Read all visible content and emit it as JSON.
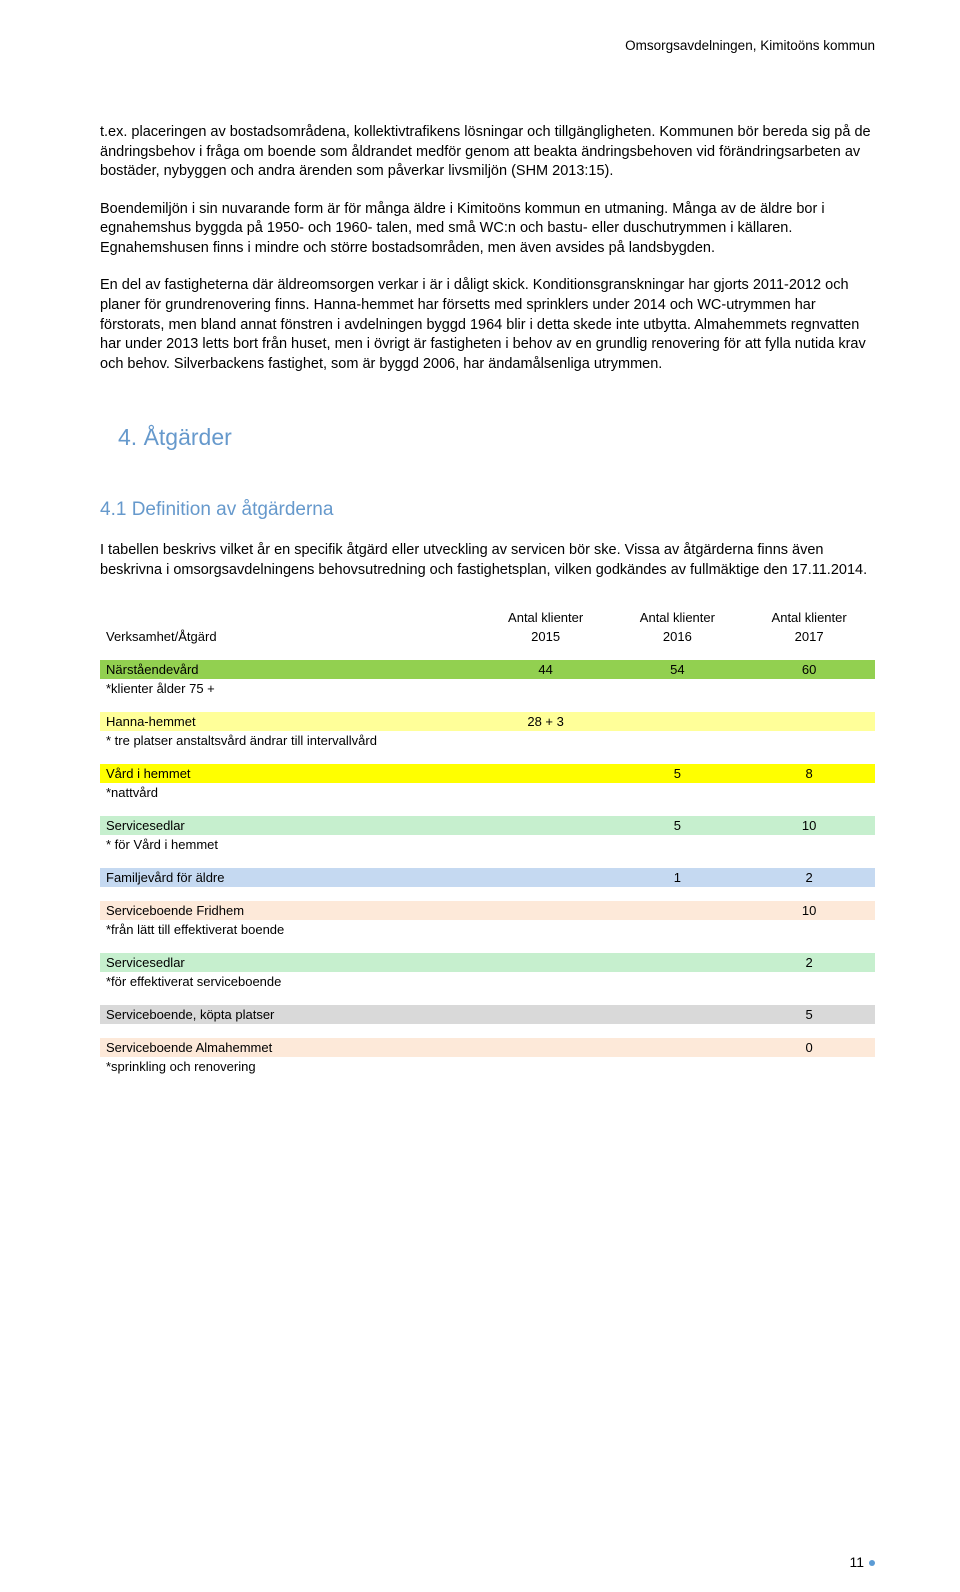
{
  "header": "Omsorgsavdelningen, Kimitoöns kommun",
  "paragraphs": {
    "p1": "t.ex. placeringen av bostadsområdena, kollektivtrafikens lösningar och tillgängligheten. Kommunen bör bereda sig på de ändringsbehov i fråga om boende som åldrandet medför genom att beakta ändringsbehoven vid förändringsarbeten av bostäder, nybyggen och andra ärenden som påverkar livsmiljön (SHM 2013:15).",
    "p2": "Boendemiljön i sin nuvarande form är för många äldre i Kimitoöns kommun en utmaning. Många av de äldre bor i egnahemshus byggda på 1950- och 1960- talen, med små WC:n och bastu- eller duschutrymmen i källaren. Egnahemshusen finns i mindre och större bostadsområden, men även avsides på landsbygden.",
    "p3": "En del av fastigheterna där äldreomsorgen verkar i är i dåligt skick. Konditionsgranskningar har gjorts 2011-2012 och planer för grundrenovering finns. Hanna-hemmet har försetts med sprinklers under 2014 och WC-utrymmen har förstorats, men bland annat fönstren i avdelningen byggd 1964 blir i detta skede inte utbytta. Almahemmets regnvatten har under 2013 letts bort från huset, men i övrigt är fastigheten i behov av en grundlig renovering för att fylla nutida krav och behov. Silverbackens fastighet, som är byggd 2006, har ändamålsenliga utrymmen."
  },
  "heading4": "4. Åtgärder",
  "heading41": "4.1 Definition av åtgärderna",
  "p41": "I tabellen beskrivs vilket år en specifik åtgärd eller utveckling av servicen bör ske. Vissa av åtgärderna finns även beskrivna i omsorgsavdelningens behovsutredning och fastighetsplan, vilken godkändes av fullmäktige den 17.11.2014.",
  "table": {
    "head": {
      "col0": "Verksamhet/Åtgärd",
      "col1_top": "Antal klienter",
      "col1_bot": "2015",
      "col2_top": "Antal klienter",
      "col2_bot": "2016",
      "col3_top": "Antal klienter",
      "col3_bot": "2017"
    },
    "rows": [
      {
        "class": "row-green",
        "label": "Närståendevård",
        "v2015": "44",
        "v2016": "54",
        "v2017": "60"
      },
      {
        "class": "note-row",
        "label": "*klienter ålder 75 +"
      },
      {
        "class": "spacer"
      },
      {
        "class": "row-lightyellow",
        "label": "Hanna-hemmet",
        "v2015": "28 + 3"
      },
      {
        "class": "note-row",
        "label": "* tre platser anstaltsvård ändrar till intervallvård"
      },
      {
        "class": "spacer"
      },
      {
        "class": "row-yellow",
        "label": "Vård i hemmet",
        "v2016": "5",
        "v2017": "8"
      },
      {
        "class": "note-row",
        "label": "*nattvård"
      },
      {
        "class": "spacer"
      },
      {
        "class": "row-lightgreen",
        "label": "Servicesedlar",
        "v2016": "5",
        "v2017": "10"
      },
      {
        "class": "note-row",
        "label": "* för Vård i hemmet"
      },
      {
        "class": "spacer"
      },
      {
        "class": "row-lightblue",
        "label": "Familjevård för äldre",
        "v2016": "1",
        "v2017": "2"
      },
      {
        "class": "spacer"
      },
      {
        "class": "row-lightorange",
        "label": "Serviceboende Fridhem",
        "v2017": "10"
      },
      {
        "class": "note-row",
        "label": "*från lätt till effektiverat boende"
      },
      {
        "class": "spacer"
      },
      {
        "class": "row-lightgreen",
        "label": "Servicesedlar",
        "v2017": "2"
      },
      {
        "class": "note-row",
        "label": "*för effektiverat serviceboende"
      },
      {
        "class": "spacer"
      },
      {
        "class": "row-lightgrey",
        "label": "Serviceboende, köpta platser",
        "v2017": "5"
      },
      {
        "class": "spacer"
      },
      {
        "class": "row-lightorange",
        "label": "Serviceboende Almahemmet",
        "v2017": "0"
      },
      {
        "class": "note-row",
        "label": "*sprinkling och renovering"
      }
    ]
  },
  "pagenum": "11"
}
